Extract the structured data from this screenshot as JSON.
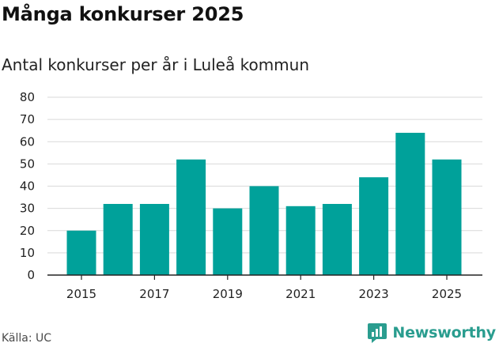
{
  "title": "Många konkurser 2025",
  "subtitle": "Antal konkurser per år i Luleå kommun",
  "source": "Källa: UC",
  "brand": {
    "name": "Newsworthy",
    "icon": "newsworthy-logo-icon",
    "color": "#2a9d8f"
  },
  "colors": {
    "bar": "#00a19a",
    "grid": "#d9d9d9",
    "axis": "#222222"
  },
  "chart_data": {
    "type": "bar",
    "title": "Många konkurser 2025",
    "subtitle": "Antal konkurser per år i Luleå kommun",
    "xlabel": "",
    "ylabel": "",
    "categories": [
      "2015",
      "2016",
      "2017",
      "2018",
      "2019",
      "2020",
      "2021",
      "2022",
      "2023",
      "2024",
      "2025"
    ],
    "values": [
      20,
      32,
      32,
      52,
      30,
      40,
      31,
      32,
      44,
      64,
      52
    ],
    "ylim": [
      0,
      80
    ],
    "yticks": [
      0,
      10,
      20,
      30,
      40,
      50,
      60,
      70,
      80
    ],
    "xtick_labels": [
      "2015",
      "2017",
      "2019",
      "2021",
      "2023",
      "2025"
    ],
    "grid": true,
    "legend": "none"
  }
}
